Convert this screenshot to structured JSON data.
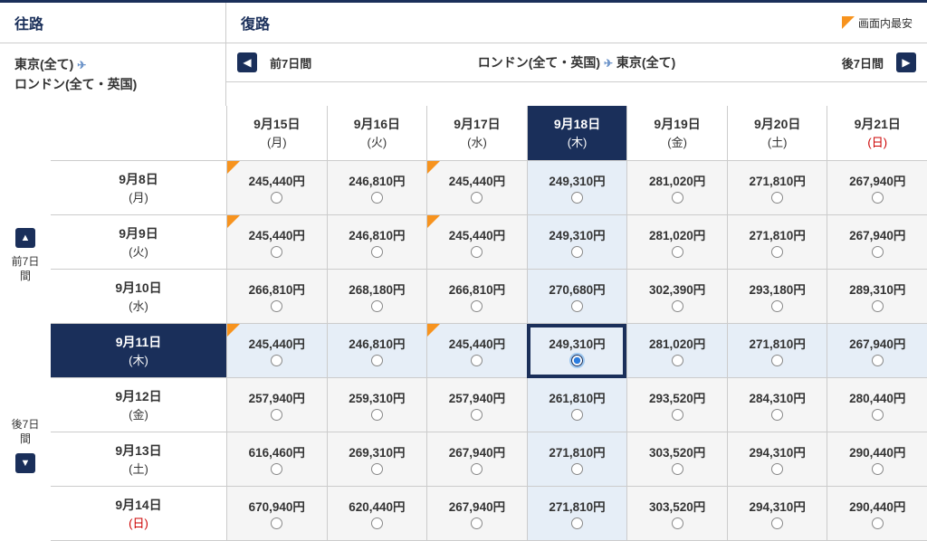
{
  "headers": {
    "outbound": "往路",
    "return": "復路",
    "lowest": "画面内最安"
  },
  "route": {
    "outbound_from": "東京(全て)",
    "outbound_to": "ロンドン(全て・英国)",
    "return_from": "ロンドン(全て・英国)",
    "return_to": "東京(全て)"
  },
  "nav": {
    "prev": "前7日間",
    "next": "後7日間"
  },
  "colors": {
    "navy": "#1a2f5a",
    "orange": "#f7931e",
    "hl": "#e6eef7",
    "sunday": "#c00"
  },
  "return_dates": [
    {
      "date": "9月15日",
      "day": "(月)",
      "sun": false
    },
    {
      "date": "9月16日",
      "day": "(火)",
      "sun": false
    },
    {
      "date": "9月17日",
      "day": "(水)",
      "sun": false
    },
    {
      "date": "9月18日",
      "day": "(木)",
      "sun": false,
      "selected": true
    },
    {
      "date": "9月19日",
      "day": "(金)",
      "sun": false
    },
    {
      "date": "9月20日",
      "day": "(土)",
      "sun": false
    },
    {
      "date": "9月21日",
      "day": "(日)",
      "sun": true
    }
  ],
  "outbound_dates": [
    {
      "date": "9月8日",
      "day": "(月)",
      "sun": false
    },
    {
      "date": "9月9日",
      "day": "(火)",
      "sun": false
    },
    {
      "date": "9月10日",
      "day": "(水)",
      "sun": false
    },
    {
      "date": "9月11日",
      "day": "(木)",
      "sun": false,
      "selected": true
    },
    {
      "date": "9月12日",
      "day": "(金)",
      "sun": false
    },
    {
      "date": "9月13日",
      "day": "(土)",
      "sun": false
    },
    {
      "date": "9月14日",
      "day": "(日)",
      "sun": true
    }
  ],
  "prices": [
    [
      {
        "p": "245,440円",
        "low": true
      },
      {
        "p": "246,810円"
      },
      {
        "p": "245,440円",
        "low": true
      },
      {
        "p": "249,310円"
      },
      {
        "p": "281,020円"
      },
      {
        "p": "271,810円"
      },
      {
        "p": "267,940円"
      }
    ],
    [
      {
        "p": "245,440円",
        "low": true
      },
      {
        "p": "246,810円"
      },
      {
        "p": "245,440円",
        "low": true
      },
      {
        "p": "249,310円"
      },
      {
        "p": "281,020円"
      },
      {
        "p": "271,810円"
      },
      {
        "p": "267,940円"
      }
    ],
    [
      {
        "p": "266,810円"
      },
      {
        "p": "268,180円"
      },
      {
        "p": "266,810円"
      },
      {
        "p": "270,680円"
      },
      {
        "p": "302,390円"
      },
      {
        "p": "293,180円"
      },
      {
        "p": "289,310円"
      }
    ],
    [
      {
        "p": "245,440円",
        "low": true
      },
      {
        "p": "246,810円"
      },
      {
        "p": "245,440円",
        "low": true
      },
      {
        "p": "249,310円",
        "picked": true
      },
      {
        "p": "281,020円"
      },
      {
        "p": "271,810円"
      },
      {
        "p": "267,940円"
      }
    ],
    [
      {
        "p": "257,940円"
      },
      {
        "p": "259,310円"
      },
      {
        "p": "257,940円"
      },
      {
        "p": "261,810円"
      },
      {
        "p": "293,520円"
      },
      {
        "p": "284,310円"
      },
      {
        "p": "280,440円"
      }
    ],
    [
      {
        "p": "616,460円"
      },
      {
        "p": "269,310円"
      },
      {
        "p": "267,940円"
      },
      {
        "p": "271,810円"
      },
      {
        "p": "303,520円"
      },
      {
        "p": "294,310円"
      },
      {
        "p": "290,440円"
      }
    ],
    [
      {
        "p": "670,940円"
      },
      {
        "p": "620,440円"
      },
      {
        "p": "267,940円"
      },
      {
        "p": "271,810円"
      },
      {
        "p": "303,520円"
      },
      {
        "p": "294,310円"
      },
      {
        "p": "290,440円"
      }
    ]
  ],
  "selected_out": 3,
  "selected_ret": 3
}
